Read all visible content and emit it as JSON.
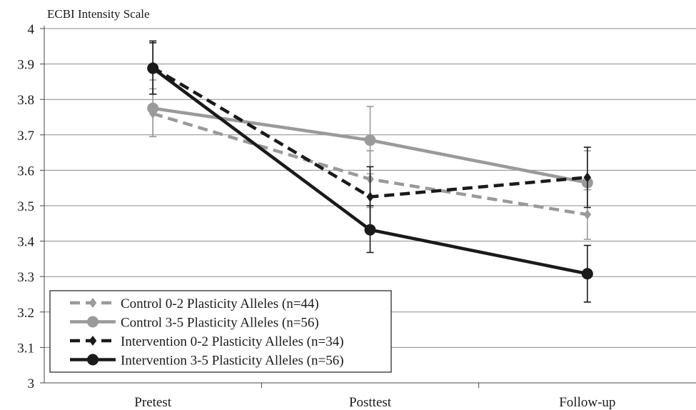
{
  "chart_data": {
    "type": "line",
    "title": "",
    "ylabel": "ECBI Intensity Scale",
    "xlabel": "",
    "categories": [
      "Pretest",
      "Posttest",
      "Follow-up"
    ],
    "ylim": [
      3,
      4
    ],
    "yticks": [
      "3",
      "3.1",
      "3.2",
      "3.3",
      "3.4",
      "3.5",
      "3.6",
      "3.7",
      "3.8",
      "3.9",
      "4"
    ],
    "grid": true,
    "legend_position": "bottom-left",
    "series": [
      {
        "name": "Control 0-2 Plasticity Alleles (n=44)",
        "values": [
          3.76,
          3.575,
          3.475
        ],
        "error_low": [
          3.695,
          3.495,
          3.405
        ],
        "error_high": [
          3.83,
          3.655,
          3.545
        ],
        "color": "#9a9a9a",
        "line_style": "dashed",
        "marker": "diamond"
      },
      {
        "name": "Control 3-5 Plasticity Alleles (n=56)",
        "values": [
          3.775,
          3.685,
          3.565
        ],
        "error_low": [
          3.695,
          3.59,
          3.475
        ],
        "error_high": [
          3.855,
          3.78,
          3.655
        ],
        "color": "#9a9a9a",
        "line_style": "solid",
        "marker": "circle"
      },
      {
        "name": "Intervention 0-2 Plasticity Alleles (n=34)",
        "values": [
          3.89,
          3.525,
          3.58
        ],
        "error_low": [
          3.815,
          3.44,
          3.495
        ],
        "error_high": [
          3.965,
          3.61,
          3.665
        ],
        "color": "#1a1a1a",
        "line_style": "dashed",
        "marker": "diamond"
      },
      {
        "name": "Intervention 3-5 Plasticity Alleles (n=56)",
        "values": [
          3.888,
          3.432,
          3.308
        ],
        "error_low": [
          3.815,
          3.368,
          3.228
        ],
        "error_high": [
          3.96,
          3.5,
          3.388
        ],
        "color": "#1a1a1a",
        "line_style": "solid",
        "marker": "circle"
      }
    ]
  }
}
